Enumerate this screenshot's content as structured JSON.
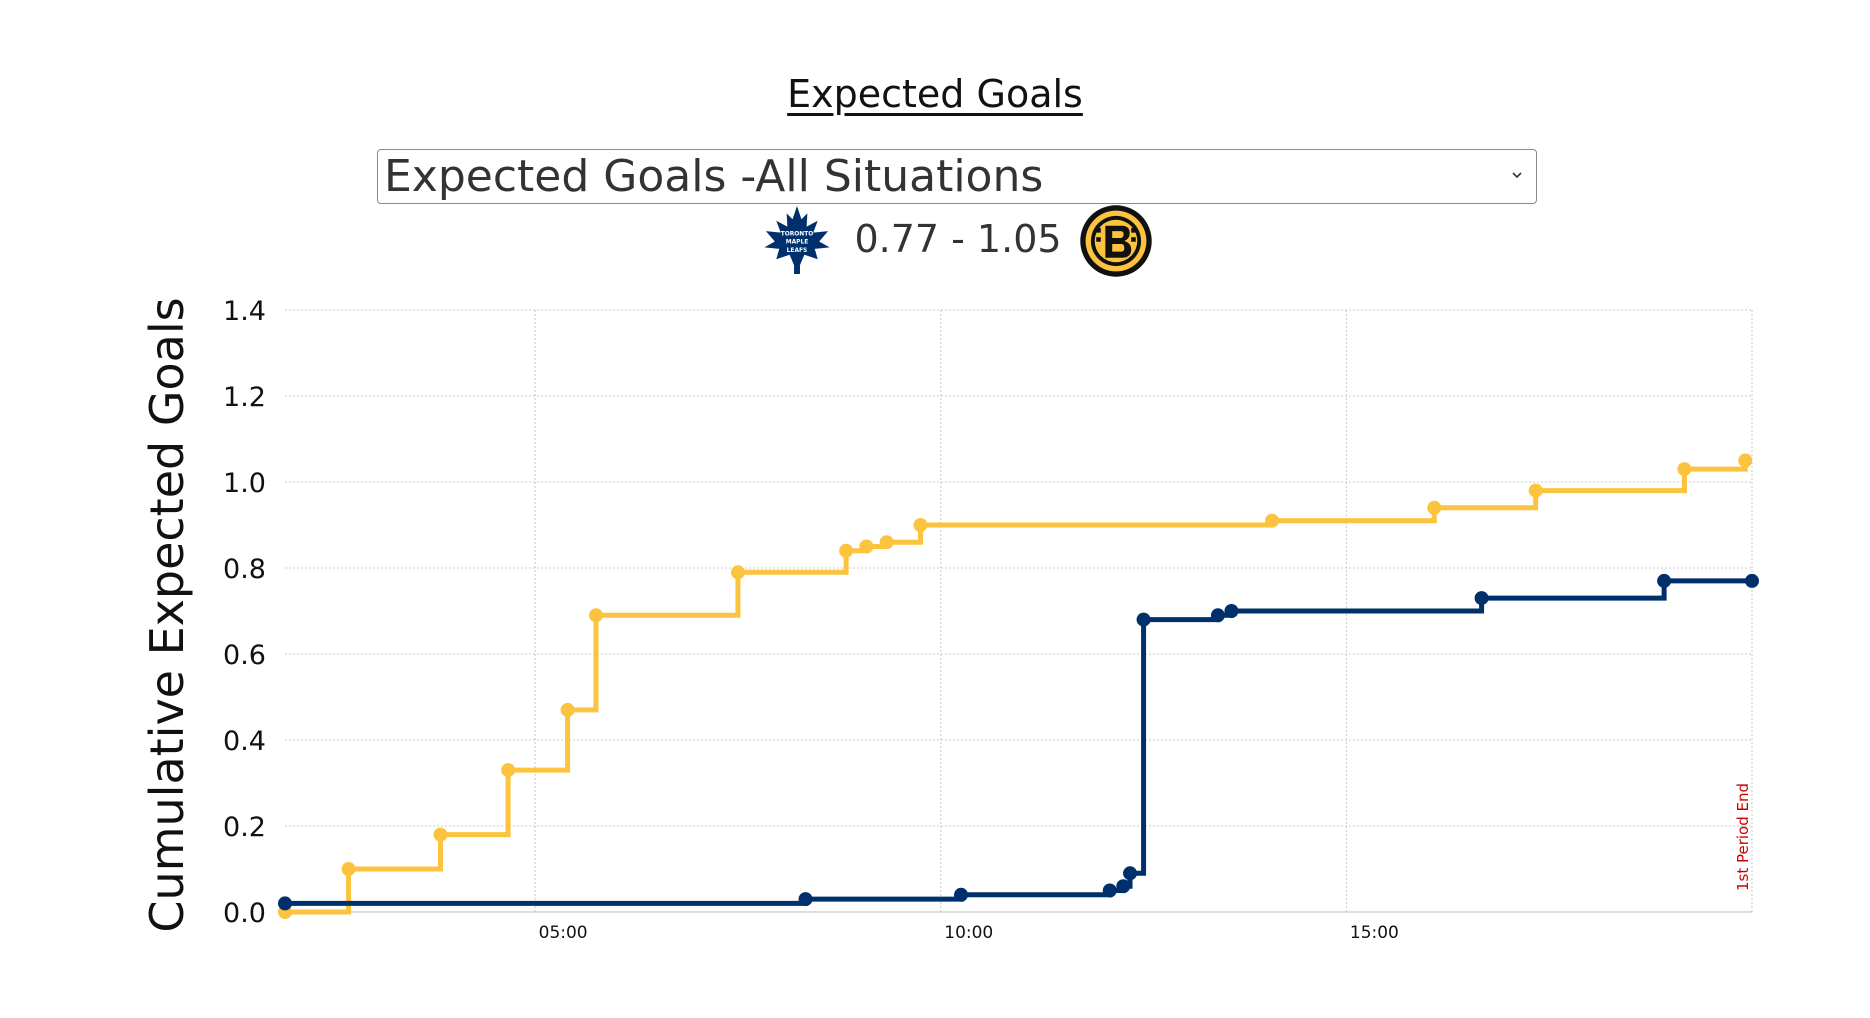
{
  "title": "Expected Goals",
  "selector": {
    "value": "Expected Goals -All Situations"
  },
  "score": {
    "text": "0.77 - 1.05",
    "home_team_logo": "toronto-maple-leafs-logo",
    "away_team_logo": "boston-bruins-logo",
    "home_color": "#00306b",
    "away_color": "#fcc33f"
  },
  "chart_data": {
    "type": "line",
    "step": true,
    "ylabel": "Cumulative Expected Goals",
    "xlabel": "",
    "ylim": [
      0,
      1.4
    ],
    "yticks": [
      "0.0",
      "0.2",
      "0.4",
      "0.6",
      "0.8",
      "1.0",
      "1.2",
      "1.4"
    ],
    "xlim": [
      "01:55",
      "20:00"
    ],
    "xticks": [
      "05:00",
      "10:00",
      "15:00"
    ],
    "grid": true,
    "annotation": "1st Period End",
    "series": [
      {
        "color": "#fcc33f",
        "x": [
          "01:55",
          "02:42",
          "03:50",
          "04:40",
          "05:24",
          "05:45",
          "07:30",
          "08:50",
          "09:05",
          "09:20",
          "09:45",
          "14:05",
          "16:05",
          "17:20",
          "19:10",
          "19:55"
        ],
        "y": [
          0.0,
          0.1,
          0.18,
          0.33,
          0.47,
          0.69,
          0.79,
          0.84,
          0.85,
          0.86,
          0.9,
          0.91,
          0.94,
          0.98,
          1.03,
          1.05
        ]
      },
      {
        "color": "#00306b",
        "x": [
          "01:55",
          "08:20",
          "10:15",
          "12:05",
          "12:15",
          "12:20",
          "12:30",
          "13:25",
          "13:35",
          "16:40",
          "18:55",
          "20:00"
        ],
        "y": [
          0.02,
          0.03,
          0.04,
          0.05,
          0.06,
          0.09,
          0.68,
          0.69,
          0.7,
          0.73,
          0.77,
          0.77
        ]
      }
    ]
  }
}
